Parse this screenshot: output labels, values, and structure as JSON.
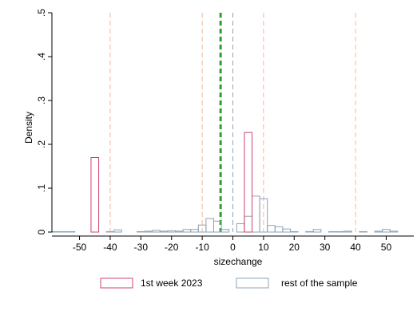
{
  "chart_data": {
    "type": "bar",
    "xlabel": "sizechange",
    "ylabel": "Density",
    "xlim": [
      -59,
      59
    ],
    "ylim": [
      0,
      0.5
    ],
    "x_ticks": [
      -50,
      -40,
      -30,
      -20,
      -10,
      0,
      10,
      20,
      30,
      40,
      50
    ],
    "y_ticks": [
      0,
      0.1,
      0.2,
      0.3,
      0.4,
      0.5
    ],
    "y_tick_labels": [
      "0",
      ".1",
      ".2",
      ".3",
      ".4",
      ".5"
    ],
    "grid": false,
    "legend_position": "bottom",
    "series": [
      {
        "name": "1st week 2023",
        "color": "#d0446e",
        "bin_width": 2.5,
        "bins": [
          {
            "x_start": -46.25,
            "x_end": -43.75,
            "value": 0.17
          },
          {
            "x_start": 3.75,
            "x_end": 6.25,
            "value": 0.227
          }
        ]
      },
      {
        "name": "rest of the sample",
        "color": "#8fa3b4",
        "bin_width": 2.5,
        "bins": [
          {
            "x_start": -59,
            "x_end": -51.5,
            "value": 0.001
          },
          {
            "x_start": -41.25,
            "x_end": -38.75,
            "value": 0.001
          },
          {
            "x_start": -38.75,
            "x_end": -36.25,
            "value": 0.005
          },
          {
            "x_start": -31.25,
            "x_end": -28.75,
            "value": 0.001
          },
          {
            "x_start": -28.75,
            "x_end": -26.25,
            "value": 0.002
          },
          {
            "x_start": -26.25,
            "x_end": -23.75,
            "value": 0.004
          },
          {
            "x_start": -23.75,
            "x_end": -21.25,
            "value": 0.002
          },
          {
            "x_start": -21.25,
            "x_end": -18.75,
            "value": 0.003
          },
          {
            "x_start": -18.75,
            "x_end": -16.25,
            "value": 0.002
          },
          {
            "x_start": -16.25,
            "x_end": -13.75,
            "value": 0.006
          },
          {
            "x_start": -13.75,
            "x_end": -11.25,
            "value": 0.006
          },
          {
            "x_start": -11.25,
            "x_end": -8.75,
            "value": 0.016
          },
          {
            "x_start": -8.75,
            "x_end": -6.25,
            "value": 0.031
          },
          {
            "x_start": -6.25,
            "x_end": -3.75,
            "value": 0.025
          },
          {
            "x_start": -3.75,
            "x_end": -1.25,
            "value": 0.006
          },
          {
            "x_start": 1.25,
            "x_end": 3.75,
            "value": 0.019
          },
          {
            "x_start": 3.75,
            "x_end": 6.25,
            "value": 0.036
          },
          {
            "x_start": 6.25,
            "x_end": 8.75,
            "value": 0.082
          },
          {
            "x_start": 8.75,
            "x_end": 11.25,
            "value": 0.076
          },
          {
            "x_start": 11.25,
            "x_end": 13.75,
            "value": 0.015
          },
          {
            "x_start": 13.75,
            "x_end": 16.25,
            "value": 0.012
          },
          {
            "x_start": 16.25,
            "x_end": 18.75,
            "value": 0.007
          },
          {
            "x_start": 18.75,
            "x_end": 21.25,
            "value": 0.001
          },
          {
            "x_start": 23.75,
            "x_end": 26.25,
            "value": 0.001
          },
          {
            "x_start": 26.25,
            "x_end": 28.75,
            "value": 0.006
          },
          {
            "x_start": 31.25,
            "x_end": 33.75,
            "value": 0.001
          },
          {
            "x_start": 33.75,
            "x_end": 36.25,
            "value": 0.001
          },
          {
            "x_start": 36.25,
            "x_end": 38.75,
            "value": 0.002
          },
          {
            "x_start": 41.25,
            "x_end": 43.75,
            "value": 0.001
          },
          {
            "x_start": 46.25,
            "x_end": 48.75,
            "value": 0.002
          },
          {
            "x_start": 48.75,
            "x_end": 51.25,
            "value": 0.006
          },
          {
            "x_start": 51.25,
            "x_end": 53.75,
            "value": 0.002
          }
        ]
      }
    ],
    "reference_lines": [
      {
        "x": -4,
        "color": "#2ca02c",
        "style": "dashed-thick"
      },
      {
        "x": 0,
        "color": "#8fa3b4",
        "style": "dashed"
      },
      {
        "x": -40,
        "color": "#f4b796",
        "style": "dashed"
      },
      {
        "x": -10,
        "color": "#f4b796",
        "style": "dashed"
      },
      {
        "x": 10,
        "color": "#f4b796",
        "style": "dashed"
      },
      {
        "x": 40,
        "color": "#f4b796",
        "style": "dashed"
      }
    ]
  }
}
